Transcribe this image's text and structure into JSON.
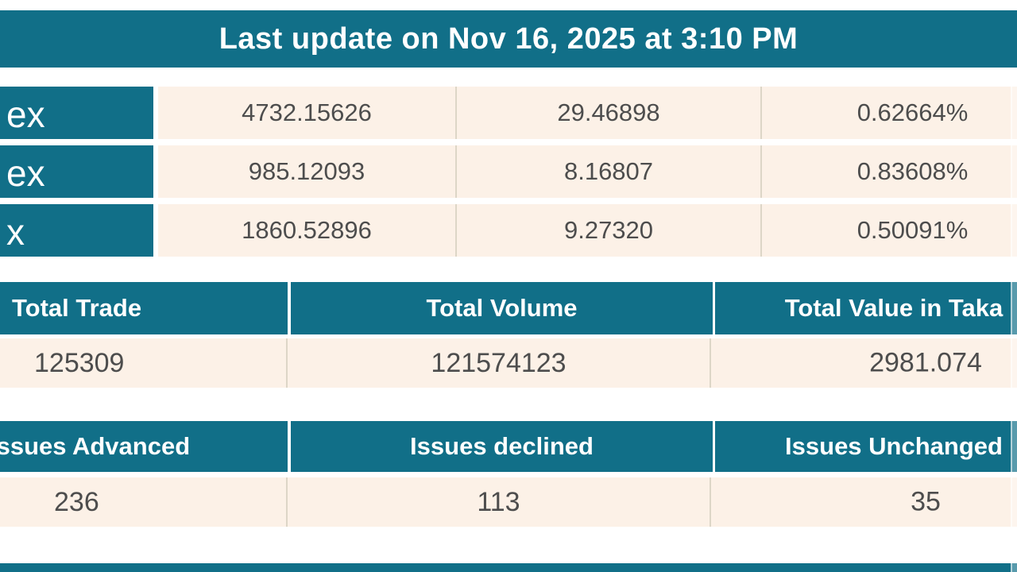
{
  "title_bar": {
    "text": "Last update on Nov 16, 2025 at 3:10 PM"
  },
  "index_table": {
    "rows": [
      {
        "label_fragment": "ex",
        "value": "4732.15626",
        "change": "29.46898",
        "change_percent": "0.62664%"
      },
      {
        "label_fragment": "ex",
        "value": "985.12093",
        "change": "8.16807",
        "change_percent": "0.83608%"
      },
      {
        "label_fragment": "x",
        "value": "1860.52896",
        "change": "9.27320",
        "change_percent": "0.50091%"
      }
    ]
  },
  "totals_table": {
    "headers": {
      "trade": "Total Trade",
      "volume": "Total Volume",
      "value": "Total Value in Taka"
    },
    "values": {
      "trade": "125309",
      "volume": "121574123",
      "value": "2981.074"
    }
  },
  "issues_table": {
    "headers": {
      "advanced": "Issues Advanced",
      "declined": "Issues declined",
      "unchanged": "Issues Unchanged"
    },
    "values": {
      "advanced": "236",
      "declined": "113",
      "unchanged": "35"
    }
  },
  "colors": {
    "teal": "#116f88",
    "cream": "#fcf1e7",
    "value_text": "#4d4d4d"
  }
}
